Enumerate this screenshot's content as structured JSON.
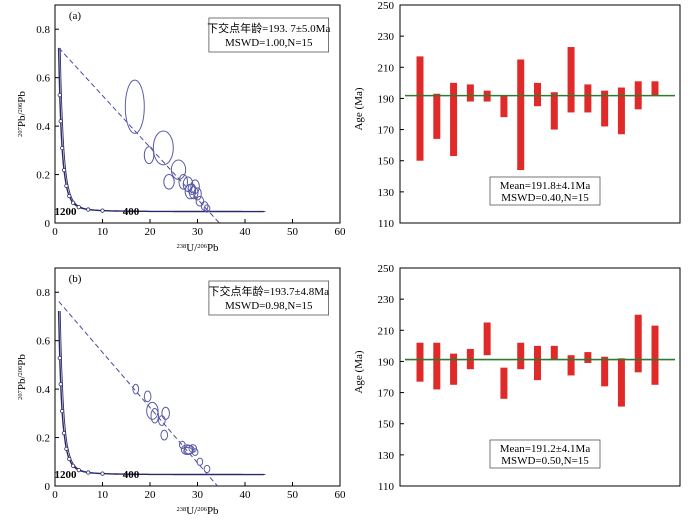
{
  "chart_data": [
    {
      "type": "scatter",
      "subtype": "tera-wasserburg-concordia",
      "panel_label": "(a)",
      "xlabel_sup": "238",
      "xlabel_rest": "U/",
      "xlabel_sup2": "206",
      "xlabel_rest2": "Pb",
      "ylabel_sup": "207",
      "ylabel_rest": "Pb/",
      "ylabel_sup2": "206",
      "ylabel_rest2": "Pb",
      "xlim": [
        0,
        60
      ],
      "ylim": [
        0,
        0.9
      ],
      "xticks": [
        "0",
        "10",
        "20",
        "30",
        "40",
        "50",
        "60"
      ],
      "yticks": [
        "0",
        "0.2",
        "0.4",
        "0.6",
        "0.8"
      ],
      "concordia_age_labels": [
        {
          "text": "1200",
          "x": 2.2,
          "y": 0.05
        },
        {
          "text": "400",
          "x": 16.0,
          "y": 0.05
        }
      ],
      "discordia": {
        "y_intercept": 0.74,
        "x_intercept": 34.6
      },
      "annotation_line1": "下交点年龄=193. 7±5.0Ma",
      "annotation_line2": "MSWD=1.00,N=15",
      "ellipses": [
        {
          "x": 16.8,
          "y": 0.48,
          "rx": 2.0,
          "ry": 0.11
        },
        {
          "x": 22.8,
          "y": 0.31,
          "rx": 2.1,
          "ry": 0.07
        },
        {
          "x": 19.8,
          "y": 0.28,
          "rx": 1.0,
          "ry": 0.035
        },
        {
          "x": 26.0,
          "y": 0.22,
          "rx": 1.5,
          "ry": 0.04
        },
        {
          "x": 24.0,
          "y": 0.17,
          "rx": 1.1,
          "ry": 0.03
        },
        {
          "x": 27.0,
          "y": 0.17,
          "rx": 0.9,
          "ry": 0.03
        },
        {
          "x": 28.0,
          "y": 0.16,
          "rx": 1.0,
          "ry": 0.03
        },
        {
          "x": 29.5,
          "y": 0.15,
          "rx": 0.9,
          "ry": 0.028
        },
        {
          "x": 28.5,
          "y": 0.13,
          "rx": 1.1,
          "ry": 0.03
        },
        {
          "x": 29.2,
          "y": 0.125,
          "rx": 0.9,
          "ry": 0.025
        },
        {
          "x": 30.0,
          "y": 0.12,
          "rx": 0.8,
          "ry": 0.025
        },
        {
          "x": 28.8,
          "y": 0.14,
          "rx": 0.8,
          "ry": 0.022
        },
        {
          "x": 30.5,
          "y": 0.09,
          "rx": 0.8,
          "ry": 0.02
        },
        {
          "x": 31.5,
          "y": 0.07,
          "rx": 0.7,
          "ry": 0.018
        },
        {
          "x": 32.0,
          "y": 0.06,
          "rx": 0.6,
          "ry": 0.015
        }
      ]
    },
    {
      "type": "bar",
      "subtype": "weighted-mean-age",
      "ylabel": "Age (Ma)",
      "ylim": [
        110,
        250
      ],
      "yticks": [
        "110",
        "130",
        "150",
        "170",
        "190",
        "210",
        "230",
        "250"
      ],
      "mean_value": 191.8,
      "mean_line1": "Mean=191.8±4.1Ma",
      "mean_line2": "MSWD=0.40,N=15",
      "bars": [
        {
          "low": 150,
          "high": 217
        },
        {
          "low": 164,
          "high": 193
        },
        {
          "low": 153,
          "high": 200
        },
        {
          "low": 188,
          "high": 199
        },
        {
          "low": 188,
          "high": 195
        },
        {
          "low": 178,
          "high": 192
        },
        {
          "low": 144,
          "high": 215
        },
        {
          "low": 185,
          "high": 200
        },
        {
          "low": 170,
          "high": 194
        },
        {
          "low": 181,
          "high": 223
        },
        {
          "low": 181,
          "high": 199
        },
        {
          "low": 172,
          "high": 195
        },
        {
          "low": 167,
          "high": 197
        },
        {
          "low": 183,
          "high": 201
        },
        {
          "low": 192,
          "high": 201
        }
      ]
    },
    {
      "type": "scatter",
      "subtype": "tera-wasserburg-concordia",
      "panel_label": "(b)",
      "xlabel_sup": "238",
      "xlabel_rest": "U/",
      "xlabel_sup2": "206",
      "xlabel_rest2": "Pb",
      "ylabel_sup": "207",
      "ylabel_rest": "Pb/",
      "ylabel_sup2": "206",
      "ylabel_rest2": "Pb",
      "xlim": [
        0,
        60
      ],
      "ylim": [
        0,
        0.9
      ],
      "xticks": [
        "0",
        "10",
        "20",
        "30",
        "40",
        "50",
        "60"
      ],
      "yticks": [
        "0",
        "0.2",
        "0.4",
        "0.6",
        "0.8"
      ],
      "concordia_age_labels": [
        {
          "text": "1200",
          "x": 2.2,
          "y": 0.05
        },
        {
          "text": "400",
          "x": 16.0,
          "y": 0.05
        }
      ],
      "discordia": {
        "y_intercept": 0.78,
        "x_intercept": 34.2
      },
      "annotation_line1": "下交点年龄=193.7±4.8Ma",
      "annotation_line2": "MSWD=0.98,N=15",
      "ellipses": [
        {
          "x": 17.0,
          "y": 0.4,
          "rx": 0.6,
          "ry": 0.02
        },
        {
          "x": 19.5,
          "y": 0.37,
          "rx": 0.7,
          "ry": 0.022
        },
        {
          "x": 20.5,
          "y": 0.31,
          "rx": 1.2,
          "ry": 0.035
        },
        {
          "x": 21.0,
          "y": 0.29,
          "rx": 0.8,
          "ry": 0.03
        },
        {
          "x": 23.3,
          "y": 0.3,
          "rx": 0.8,
          "ry": 0.025
        },
        {
          "x": 22.5,
          "y": 0.27,
          "rx": 0.7,
          "ry": 0.02
        },
        {
          "x": 23.0,
          "y": 0.21,
          "rx": 0.7,
          "ry": 0.02
        },
        {
          "x": 26.8,
          "y": 0.17,
          "rx": 0.6,
          "ry": 0.015
        },
        {
          "x": 27.8,
          "y": 0.15,
          "rx": 1.2,
          "ry": 0.02
        },
        {
          "x": 28.3,
          "y": 0.15,
          "rx": 1.0,
          "ry": 0.018
        },
        {
          "x": 29.0,
          "y": 0.155,
          "rx": 0.8,
          "ry": 0.016
        },
        {
          "x": 28.0,
          "y": 0.145,
          "rx": 0.9,
          "ry": 0.015
        },
        {
          "x": 29.5,
          "y": 0.14,
          "rx": 0.6,
          "ry": 0.014
        },
        {
          "x": 30.5,
          "y": 0.1,
          "rx": 0.6,
          "ry": 0.015
        },
        {
          "x": 32.0,
          "y": 0.07,
          "rx": 0.6,
          "ry": 0.015
        }
      ]
    },
    {
      "type": "bar",
      "subtype": "weighted-mean-age",
      "ylabel": "Age (Ma)",
      "ylim": [
        110,
        250
      ],
      "yticks": [
        "110",
        "130",
        "150",
        "170",
        "190",
        "210",
        "230",
        "250"
      ],
      "mean_value": 191.2,
      "mean_line1": "Mean=191.2±4.1Ma",
      "mean_line2": "MSWD=0.50,N=15",
      "bars": [
        {
          "low": 177,
          "high": 202
        },
        {
          "low": 172,
          "high": 202
        },
        {
          "low": 175,
          "high": 195
        },
        {
          "low": 185,
          "high": 198
        },
        {
          "low": 194,
          "high": 215
        },
        {
          "low": 166,
          "high": 186
        },
        {
          "low": 185,
          "high": 202
        },
        {
          "low": 178,
          "high": 200
        },
        {
          "low": 191,
          "high": 200
        },
        {
          "low": 181,
          "high": 194
        },
        {
          "low": 189,
          "high": 196
        },
        {
          "low": 174,
          "high": 193
        },
        {
          "low": 161,
          "high": 192
        },
        {
          "low": 183,
          "high": 220
        },
        {
          "low": 175,
          "high": 213
        }
      ]
    }
  ],
  "colors": {
    "ellipse": "#5a5aa8",
    "concordia": "#2a2a6a",
    "discordia": "#4a4aa0",
    "bar": "#e02a2a",
    "mean_line": "#2e7a2e"
  }
}
